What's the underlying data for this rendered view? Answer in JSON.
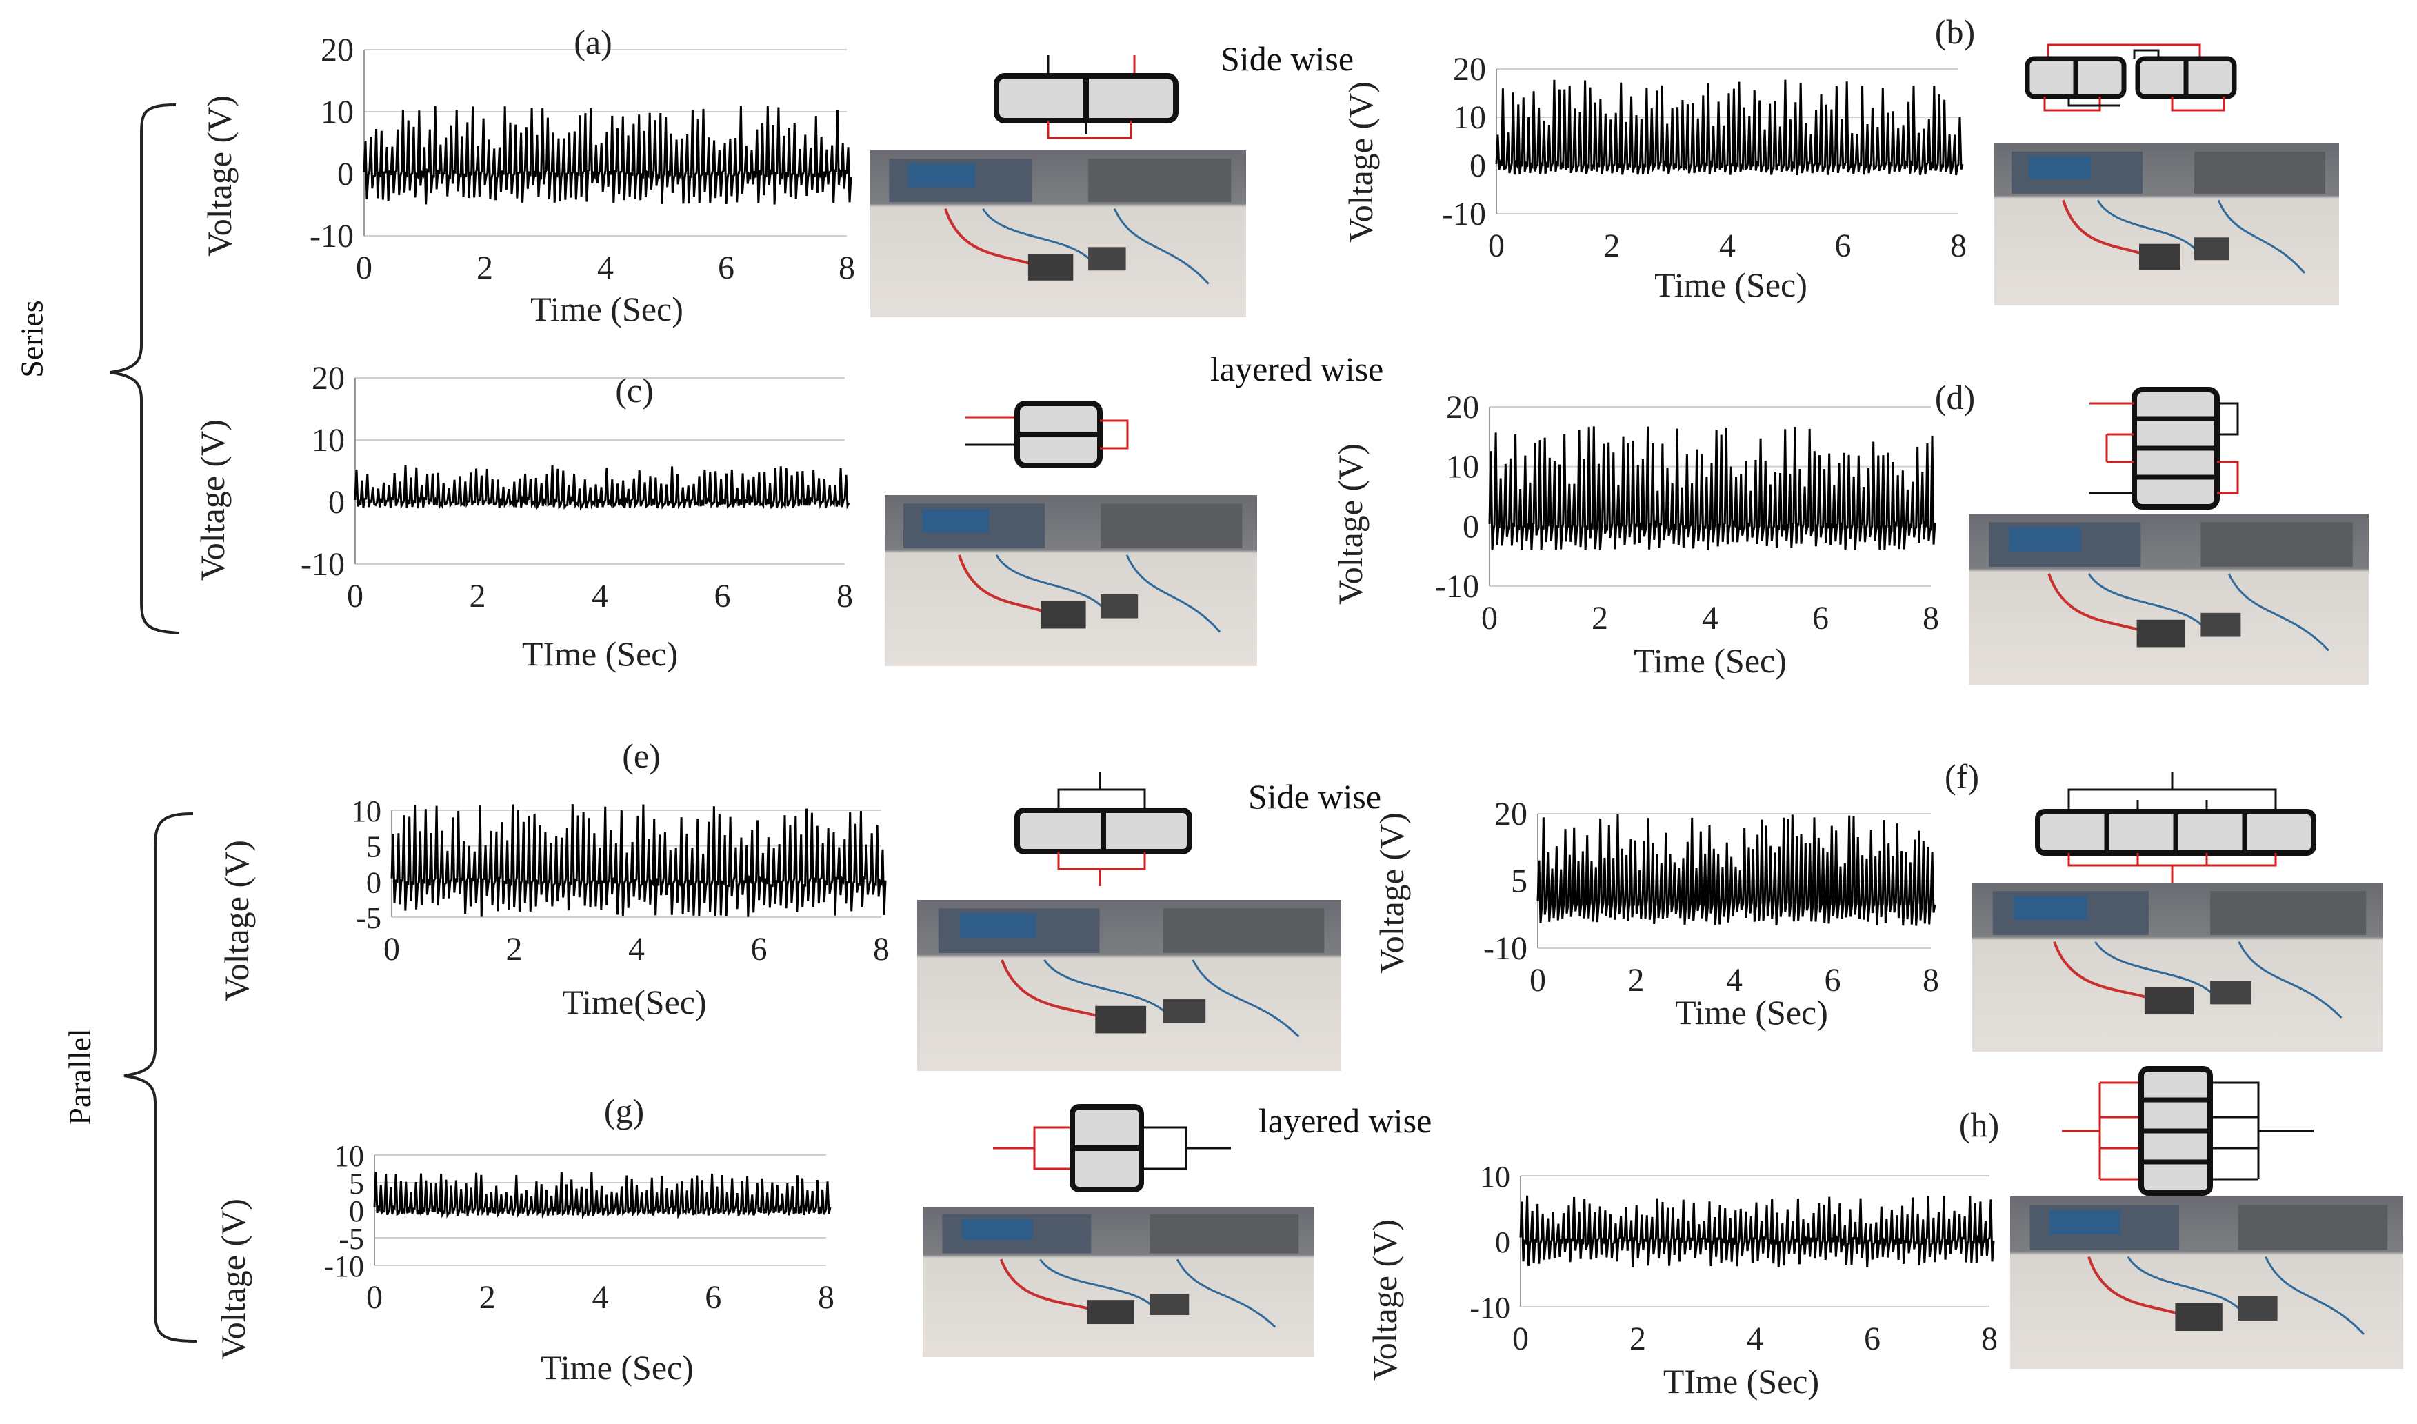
{
  "groups": {
    "series": "Series",
    "parallel": "Parallel"
  },
  "section_titles": {
    "side_wise_1": "Side wise",
    "layered_wise_1": "layered wise",
    "side_wise_2": "Side wise",
    "layered_wise_2": "layered wise"
  },
  "colors": {
    "wire_red": "#d42020",
    "wire_black": "#111111",
    "cell_fill": "#d9d9d9",
    "grid": "#d0d0d0",
    "trace": "#000000"
  },
  "chart_data": [
    {
      "panel": "(a)",
      "type": "line",
      "xlabel": "Time (Sec)",
      "ylabel": "Voltage (V)",
      "xlim": [
        0,
        8
      ],
      "ylim": [
        -10,
        20
      ],
      "xticks": [
        "0",
        "2",
        "4",
        "6",
        "8"
      ],
      "yticks": [
        "20",
        "10",
        "0",
        "-10"
      ],
      "peak_max": 11,
      "trough_min": -5,
      "note": ""
    },
    {
      "panel": "(b)",
      "type": "line",
      "xlabel": "Time (Sec)",
      "ylabel": "Voltage (V)",
      "xlim": [
        0,
        8
      ],
      "ylim": [
        -10,
        20
      ],
      "xticks": [
        "0",
        "2",
        "4",
        "6",
        "8"
      ],
      "yticks": [
        "20",
        "10",
        "0",
        "-10"
      ],
      "peak_max": 18,
      "trough_min": -2
    },
    {
      "panel": "(c)",
      "type": "line",
      "xlabel": "TIme (Sec)",
      "ylabel": "Voltage (V)",
      "xlim": [
        0,
        8
      ],
      "ylim": [
        -10,
        20
      ],
      "xticks": [
        "0",
        "2",
        "4",
        "6",
        "8"
      ],
      "yticks": [
        "20",
        "10",
        "0",
        "-10"
      ],
      "peak_max": 6,
      "trough_min": -1
    },
    {
      "panel": "(d)",
      "type": "line",
      "xlabel": "Time (Sec)",
      "ylabel": "Voltage (V)",
      "xlim": [
        0,
        8
      ],
      "ylim": [
        -10,
        20
      ],
      "xticks": [
        "0",
        "2",
        "4",
        "6",
        "8"
      ],
      "yticks": [
        "20",
        "10",
        "0",
        "-10"
      ],
      "peak_max": 17,
      "trough_min": -4
    },
    {
      "panel": "(e)",
      "type": "line",
      "xlabel": "Time(Sec)",
      "ylabel": "Voltage (V)",
      "xlim": [
        0,
        8
      ],
      "ylim": [
        -5,
        10
      ],
      "xticks": [
        "0",
        "2",
        "4",
        "6",
        "8"
      ],
      "yticks": [
        "10",
        "5",
        "0",
        "-5"
      ],
      "peak_max": 11,
      "trough_min": -5
    },
    {
      "panel": "(f)",
      "type": "line",
      "xlabel": "Time (Sec)",
      "ylabel": "Voltage (V)",
      "xlim": [
        0,
        8
      ],
      "ylim": [
        -10,
        20
      ],
      "xticks": [
        "0",
        "2",
        "4",
        "6",
        "8"
      ],
      "yticks": [
        "20",
        "5",
        "-10"
      ],
      "peak_max": 20,
      "trough_min": -5
    },
    {
      "panel": "(g)",
      "type": "line",
      "xlabel": "Time (Sec)",
      "ylabel": "Voltage (V)",
      "xlim": [
        0,
        8
      ],
      "ylim": [
        -10,
        10
      ],
      "xticks": [
        "0",
        "2",
        "4",
        "6",
        "8"
      ],
      "yticks": [
        "10",
        "5",
        "0",
        "-5",
        "-10"
      ],
      "peak_max": 7,
      "trough_min": -1
    },
    {
      "panel": "(h)",
      "type": "line",
      "xlabel": "TIme (Sec)",
      "ylabel": "Voltage (V)",
      "xlim": [
        0,
        8
      ],
      "ylim": [
        -10,
        10
      ],
      "xticks": [
        "0",
        "2",
        "4",
        "6",
        "8"
      ],
      "yticks": [
        "10",
        "0",
        "-10"
      ],
      "peak_max": 7,
      "trough_min": -4
    }
  ]
}
